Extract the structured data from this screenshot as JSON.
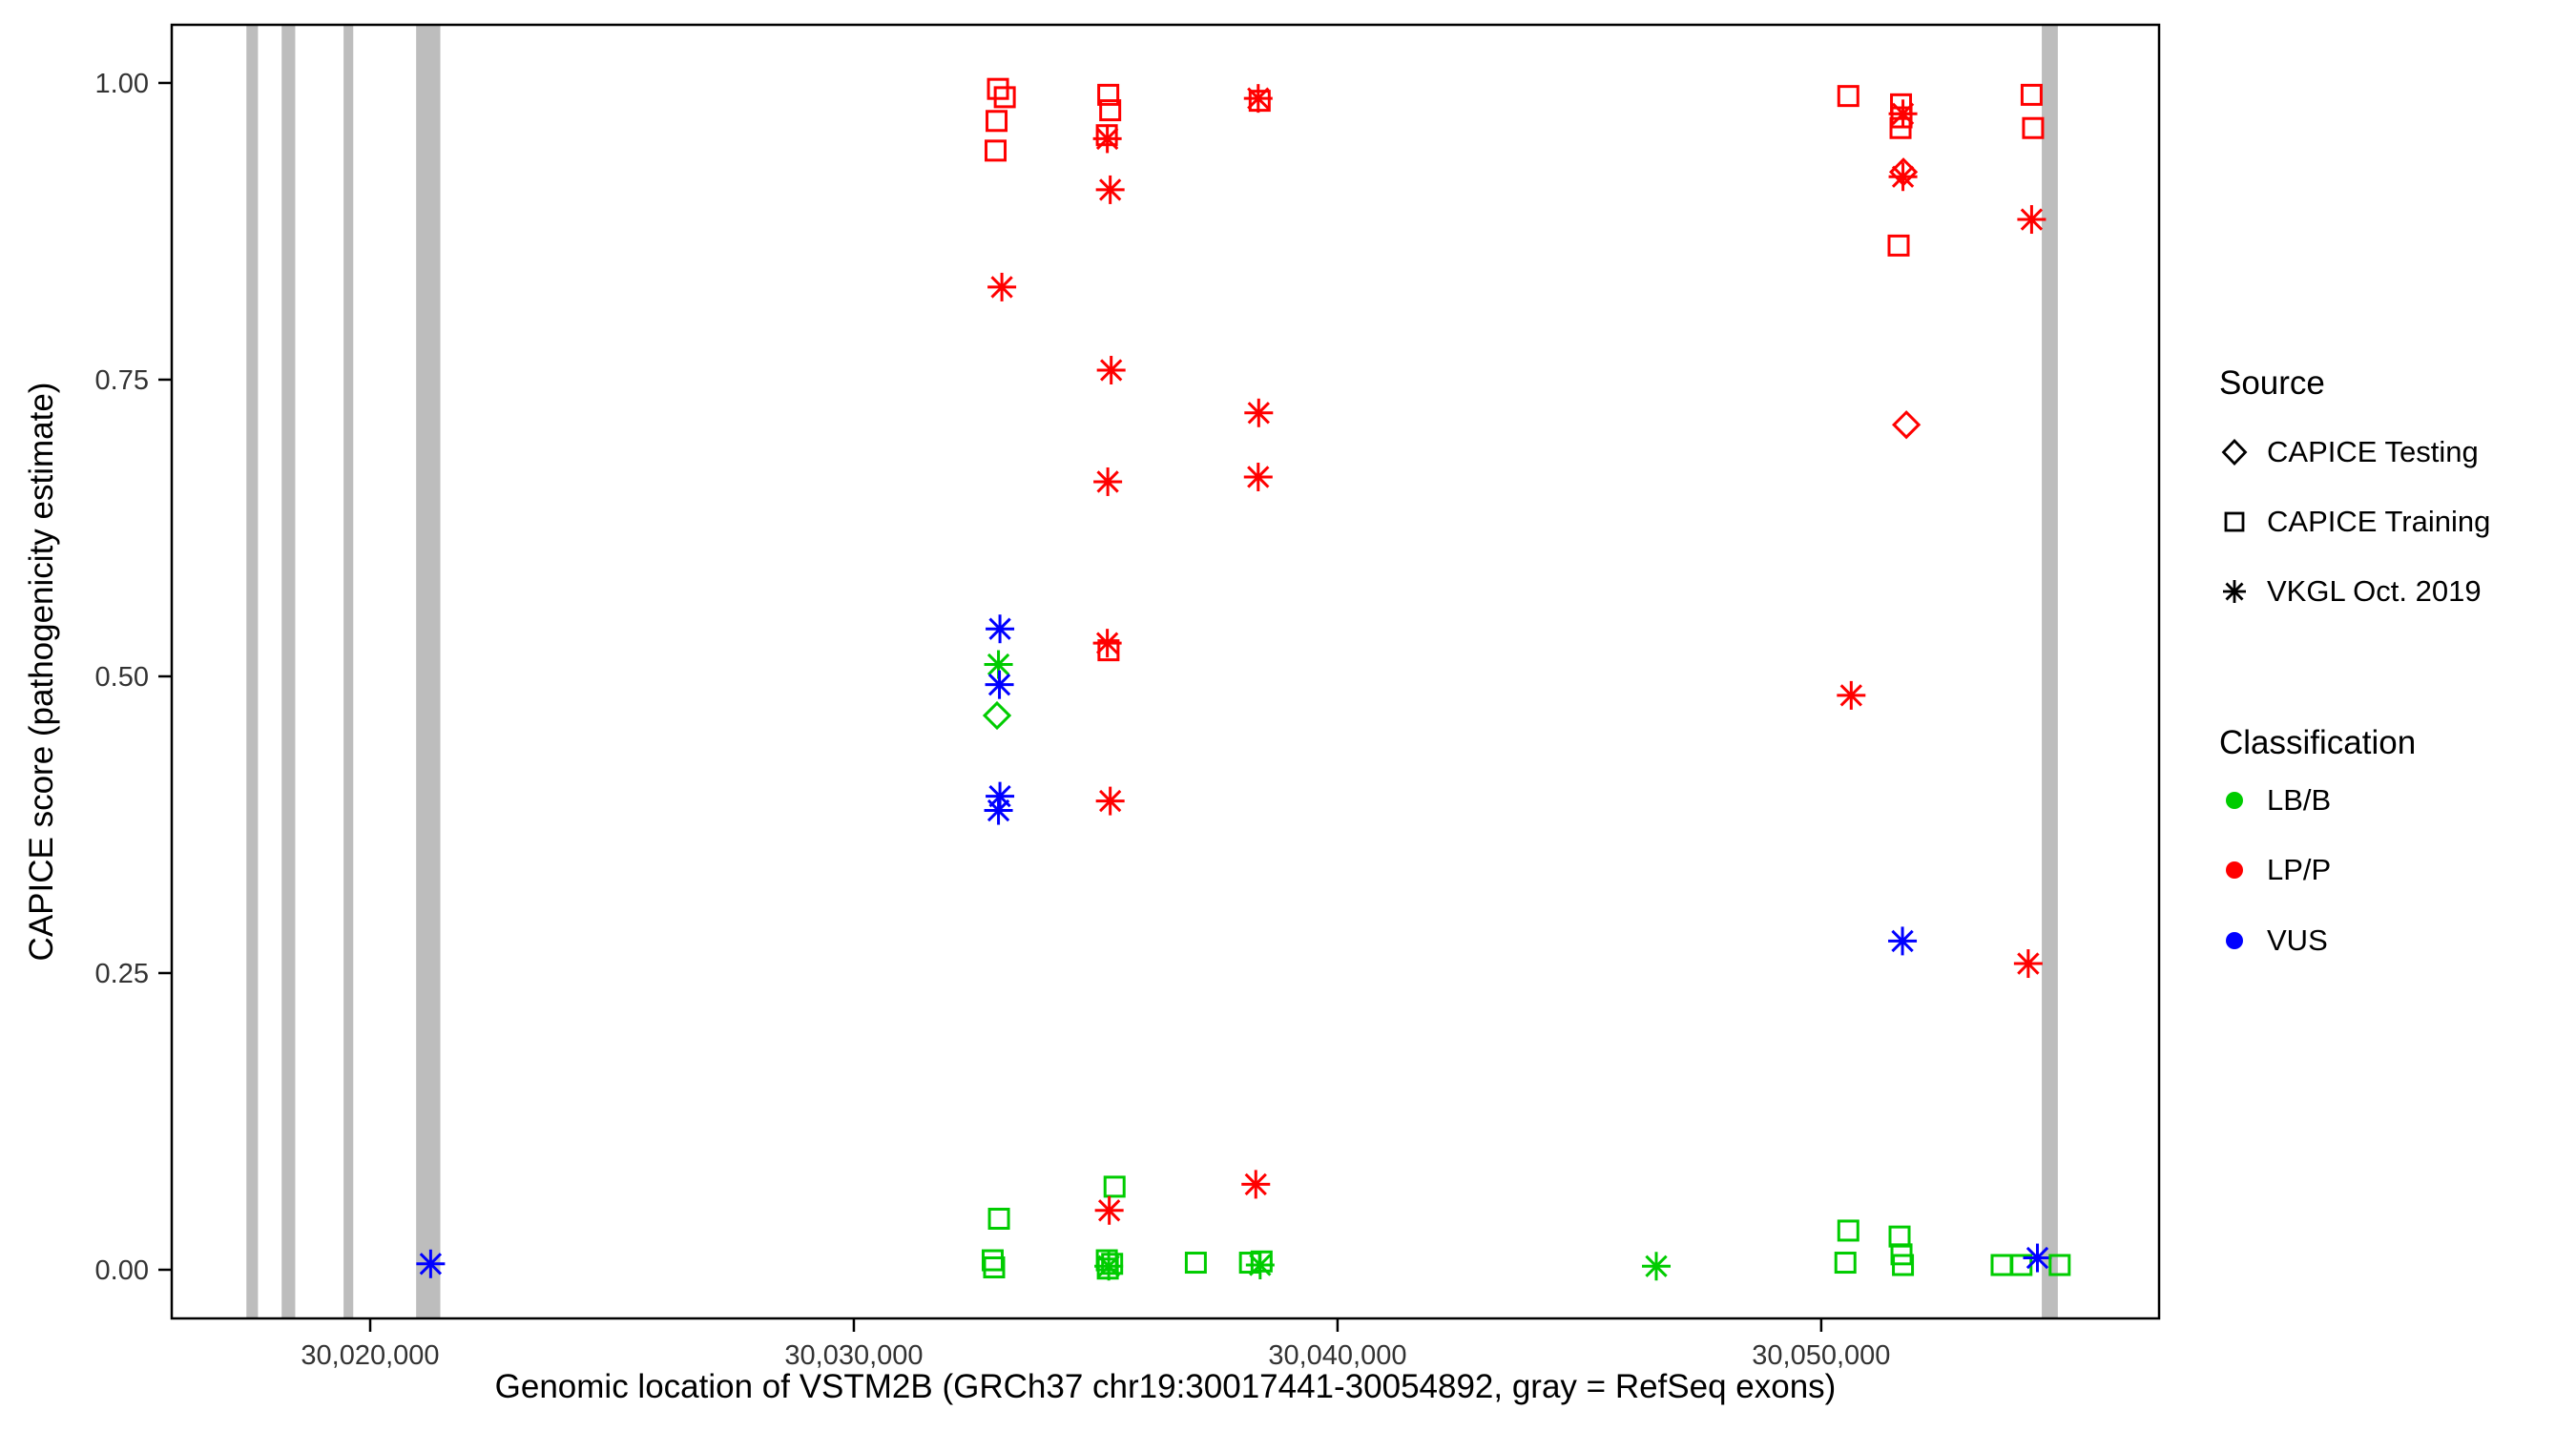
{
  "chart_data": {
    "type": "scatter",
    "title": "",
    "xlabel": "Genomic location of VSTM2B (GRCh37 chr19:30017441-30054892, gray = RefSeq exons)",
    "ylabel": "CAPICE score (pathogenicity estimate)",
    "xlim": [
      30015897,
      30056985
    ],
    "ylim": [
      -0.041,
      1.049
    ],
    "grid": false,
    "legend_position": "right",
    "x_ticks": [
      {
        "value": 30020000,
        "label": "30,020,000"
      },
      {
        "value": 30030000,
        "label": "30,030,000"
      },
      {
        "value": 30040000,
        "label": "30,040,000"
      },
      {
        "value": 30050000,
        "label": "30,050,000"
      }
    ],
    "y_ticks": [
      {
        "value": 0.0,
        "label": "0.00"
      },
      {
        "value": 0.25,
        "label": "0.25"
      },
      {
        "value": 0.5,
        "label": "0.50"
      },
      {
        "value": 0.75,
        "label": "0.75"
      },
      {
        "value": 1.0,
        "label": "1.00"
      }
    ],
    "colors": {
      "LB/B": "#00CC00",
      "LP/P": "#FF0000",
      "VUS": "#0000FF",
      "exon": "#BDBDBD"
    },
    "shape_by_source": {
      "CAPICE Testing": "diamond",
      "CAPICE Training": "square",
      "VKGL Oct. 2019": "asterisk"
    },
    "exons": [
      {
        "start": 30017441,
        "end": 30017680
      },
      {
        "start": 30018170,
        "end": 30018450
      },
      {
        "start": 30019450,
        "end": 30019650
      },
      {
        "start": 30020950,
        "end": 30021450
      },
      {
        "start": 30054560,
        "end": 30054892
      }
    ],
    "points": [
      {
        "x": 30021250,
        "y": 0.005,
        "source": "VKGL Oct. 2019",
        "cls": "VUS"
      },
      {
        "x": 30032980,
        "y": 0.995,
        "source": "CAPICE Training",
        "cls": "LP/P"
      },
      {
        "x": 30033120,
        "y": 0.988,
        "source": "CAPICE Training",
        "cls": "LP/P"
      },
      {
        "x": 30032950,
        "y": 0.968,
        "source": "CAPICE Training",
        "cls": "LP/P"
      },
      {
        "x": 30032930,
        "y": 0.943,
        "source": "CAPICE Training",
        "cls": "LP/P"
      },
      {
        "x": 30033060,
        "y": 0.828,
        "source": "VKGL Oct. 2019",
        "cls": "LP/P"
      },
      {
        "x": 30033020,
        "y": 0.54,
        "source": "VKGL Oct. 2019",
        "cls": "VUS"
      },
      {
        "x": 30032990,
        "y": 0.51,
        "source": "VKGL Oct. 2019",
        "cls": "LB/B"
      },
      {
        "x": 30033010,
        "y": 0.493,
        "source": "VKGL Oct. 2019",
        "cls": "VUS"
      },
      {
        "x": 30032960,
        "y": 0.467,
        "source": "CAPICE Testing",
        "cls": "LB/B"
      },
      {
        "x": 30033020,
        "y": 0.399,
        "source": "VKGL Oct. 2019",
        "cls": "VUS"
      },
      {
        "x": 30032990,
        "y": 0.387,
        "source": "VKGL Oct. 2019",
        "cls": "VUS"
      },
      {
        "x": 30033000,
        "y": 0.043,
        "source": "CAPICE Training",
        "cls": "LB/B"
      },
      {
        "x": 30032870,
        "y": 0.008,
        "source": "CAPICE Training",
        "cls": "LB/B"
      },
      {
        "x": 30032900,
        "y": 0.002,
        "source": "CAPICE Training",
        "cls": "LB/B"
      },
      {
        "x": 30035260,
        "y": 0.99,
        "source": "CAPICE Training",
        "cls": "LP/P"
      },
      {
        "x": 30035300,
        "y": 0.977,
        "source": "CAPICE Training",
        "cls": "LP/P"
      },
      {
        "x": 30035230,
        "y": 0.956,
        "source": "CAPICE Training",
        "cls": "LP/P"
      },
      {
        "x": 30035240,
        "y": 0.953,
        "source": "VKGL Oct. 2019",
        "cls": "LP/P"
      },
      {
        "x": 30035300,
        "y": 0.91,
        "source": "VKGL Oct. 2019",
        "cls": "LP/P"
      },
      {
        "x": 30035320,
        "y": 0.758,
        "source": "VKGL Oct. 2019",
        "cls": "LP/P"
      },
      {
        "x": 30035250,
        "y": 0.664,
        "source": "VKGL Oct. 2019",
        "cls": "LP/P"
      },
      {
        "x": 30035240,
        "y": 0.528,
        "source": "VKGL Oct. 2019",
        "cls": "LP/P"
      },
      {
        "x": 30035265,
        "y": 0.522,
        "source": "CAPICE Training",
        "cls": "LP/P"
      },
      {
        "x": 30035300,
        "y": 0.395,
        "source": "VKGL Oct. 2019",
        "cls": "LP/P"
      },
      {
        "x": 30035390,
        "y": 0.07,
        "source": "CAPICE Training",
        "cls": "LB/B"
      },
      {
        "x": 30035280,
        "y": 0.05,
        "source": "VKGL Oct. 2019",
        "cls": "LP/P"
      },
      {
        "x": 30035230,
        "y": 0.008,
        "source": "CAPICE Training",
        "cls": "LB/B"
      },
      {
        "x": 30035270,
        "y": 0.003,
        "source": "VKGL Oct. 2019",
        "cls": "LB/B"
      },
      {
        "x": 30035340,
        "y": 0.005,
        "source": "CAPICE Training",
        "cls": "LB/B"
      },
      {
        "x": 30035250,
        "y": 0.001,
        "source": "CAPICE Training",
        "cls": "LB/B"
      },
      {
        "x": 30037070,
        "y": 0.006,
        "source": "CAPICE Training",
        "cls": "LB/B"
      },
      {
        "x": 30038360,
        "y": 0.987,
        "source": "VKGL Oct. 2019",
        "cls": "LP/P"
      },
      {
        "x": 30038390,
        "y": 0.985,
        "source": "CAPICE Training",
        "cls": "LP/P"
      },
      {
        "x": 30038370,
        "y": 0.722,
        "source": "VKGL Oct. 2019",
        "cls": "LP/P"
      },
      {
        "x": 30038360,
        "y": 0.668,
        "source": "VKGL Oct. 2019",
        "cls": "LP/P"
      },
      {
        "x": 30038310,
        "y": 0.072,
        "source": "VKGL Oct. 2019",
        "cls": "LP/P"
      },
      {
        "x": 30038190,
        "y": 0.006,
        "source": "CAPICE Training",
        "cls": "LB/B"
      },
      {
        "x": 30038400,
        "y": 0.004,
        "source": "VKGL Oct. 2019",
        "cls": "LB/B"
      },
      {
        "x": 30038430,
        "y": 0.007,
        "source": "CAPICE Training",
        "cls": "LB/B"
      },
      {
        "x": 30046590,
        "y": 0.003,
        "source": "VKGL Oct. 2019",
        "cls": "LB/B"
      },
      {
        "x": 30050560,
        "y": 0.989,
        "source": "CAPICE Training",
        "cls": "LP/P"
      },
      {
        "x": 30050620,
        "y": 0.484,
        "source": "VKGL Oct. 2019",
        "cls": "LP/P"
      },
      {
        "x": 30050560,
        "y": 0.033,
        "source": "CAPICE Training",
        "cls": "LB/B"
      },
      {
        "x": 30050500,
        "y": 0.006,
        "source": "CAPICE Training",
        "cls": "LB/B"
      },
      {
        "x": 30051650,
        "y": 0.982,
        "source": "CAPICE Training",
        "cls": "LP/P"
      },
      {
        "x": 30051690,
        "y": 0.974,
        "source": "VKGL Oct. 2019",
        "cls": "LP/P"
      },
      {
        "x": 30051660,
        "y": 0.971,
        "source": "CAPICE Training",
        "cls": "LP/P"
      },
      {
        "x": 30051640,
        "y": 0.962,
        "source": "CAPICE Training",
        "cls": "LP/P"
      },
      {
        "x": 30051700,
        "y": 0.925,
        "source": "CAPICE Testing",
        "cls": "LP/P"
      },
      {
        "x": 30051690,
        "y": 0.921,
        "source": "VKGL Oct. 2019",
        "cls": "LP/P"
      },
      {
        "x": 30051600,
        "y": 0.863,
        "source": "CAPICE Training",
        "cls": "LP/P"
      },
      {
        "x": 30051760,
        "y": 0.712,
        "source": "CAPICE Testing",
        "cls": "LP/P"
      },
      {
        "x": 30051680,
        "y": 0.277,
        "source": "VKGL Oct. 2019",
        "cls": "VUS"
      },
      {
        "x": 30051620,
        "y": 0.028,
        "source": "CAPICE Training",
        "cls": "LB/B"
      },
      {
        "x": 30051660,
        "y": 0.013,
        "source": "CAPICE Training",
        "cls": "LB/B"
      },
      {
        "x": 30051690,
        "y": 0.004,
        "source": "CAPICE Training",
        "cls": "LB/B"
      },
      {
        "x": 30054350,
        "y": 0.99,
        "source": "CAPICE Training",
        "cls": "LP/P"
      },
      {
        "x": 30054380,
        "y": 0.962,
        "source": "CAPICE Training",
        "cls": "LP/P"
      },
      {
        "x": 30054350,
        "y": 0.885,
        "source": "VKGL Oct. 2019",
        "cls": "LP/P"
      },
      {
        "x": 30054280,
        "y": 0.258,
        "source": "VKGL Oct. 2019",
        "cls": "LP/P"
      },
      {
        "x": 30053730,
        "y": 0.004,
        "source": "CAPICE Training",
        "cls": "LB/B"
      },
      {
        "x": 30054140,
        "y": 0.004,
        "source": "CAPICE Training",
        "cls": "LB/B"
      },
      {
        "x": 30054470,
        "y": 0.01,
        "source": "VKGL Oct. 2019",
        "cls": "VUS"
      },
      {
        "x": 30054930,
        "y": 0.004,
        "source": "CAPICE Training",
        "cls": "LB/B"
      }
    ]
  },
  "legend": {
    "source": {
      "title": "Source",
      "items": [
        {
          "shape": "diamond",
          "label": "CAPICE Testing"
        },
        {
          "shape": "square",
          "label": "CAPICE Training"
        },
        {
          "shape": "asterisk",
          "label": "VKGL Oct. 2019"
        }
      ]
    },
    "classification": {
      "title": "Classification",
      "items": [
        {
          "label": "LB/B",
          "color": "#00CC00"
        },
        {
          "label": "LP/P",
          "color": "#FF0000"
        },
        {
          "label": "VUS",
          "color": "#0000FF"
        }
      ]
    }
  }
}
